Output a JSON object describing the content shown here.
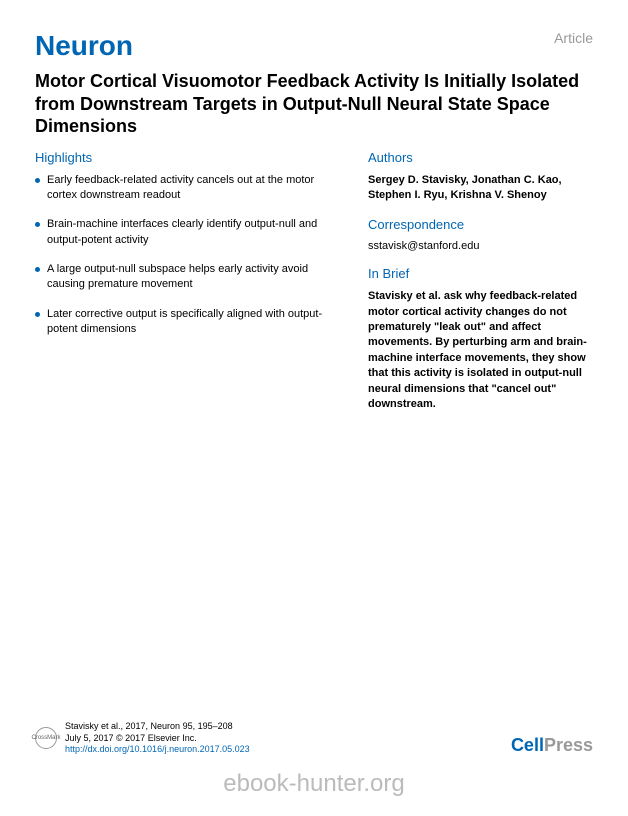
{
  "header": {
    "journal": "Neuron",
    "label": "Article"
  },
  "title": "Motor Cortical Visuomotor Feedback Activity Is Initially Isolated from Downstream Targets in Output-Null Neural State Space Dimensions",
  "highlights": {
    "heading": "Highlights",
    "items": [
      "Early feedback-related activity cancels out at the motor cortex downstream readout",
      "Brain-machine interfaces clearly identify output-null and output-potent activity",
      "A large output-null subspace helps early activity avoid causing premature movement",
      "Later corrective output is specifically aligned with output-potent dimensions"
    ]
  },
  "authors": {
    "heading": "Authors",
    "text": "Sergey D. Stavisky, Jonathan C. Kao, Stephen I. Ryu, Krishna V. Shenoy"
  },
  "correspondence": {
    "heading": "Correspondence",
    "text": "sstavisk@stanford.edu"
  },
  "inbrief": {
    "heading": "In Brief",
    "text": "Stavisky et al. ask why feedback-related motor cortical activity changes do not prematurely \"leak out\" and affect movements. By perturbing arm and brain-machine interface movements, they show that this activity is isolated in output-null neural dimensions that \"cancel out\" downstream."
  },
  "footer": {
    "citation": "Stavisky et al., 2017, Neuron 95, 195–208",
    "date_copyright": "July 5, 2017 © 2017 Elsevier Inc.",
    "doi": "http://dx.doi.org/10.1016/j.neuron.2017.05.023",
    "crossmark": "CrossMark",
    "publisher_cell": "Cell",
    "publisher_press": "Press"
  },
  "watermark": "ebook-hunter.org",
  "colors": {
    "primary_blue": "#0066b3",
    "gray_label": "#999999",
    "text_black": "#000000",
    "watermark_gray": "#bbbbbb"
  }
}
